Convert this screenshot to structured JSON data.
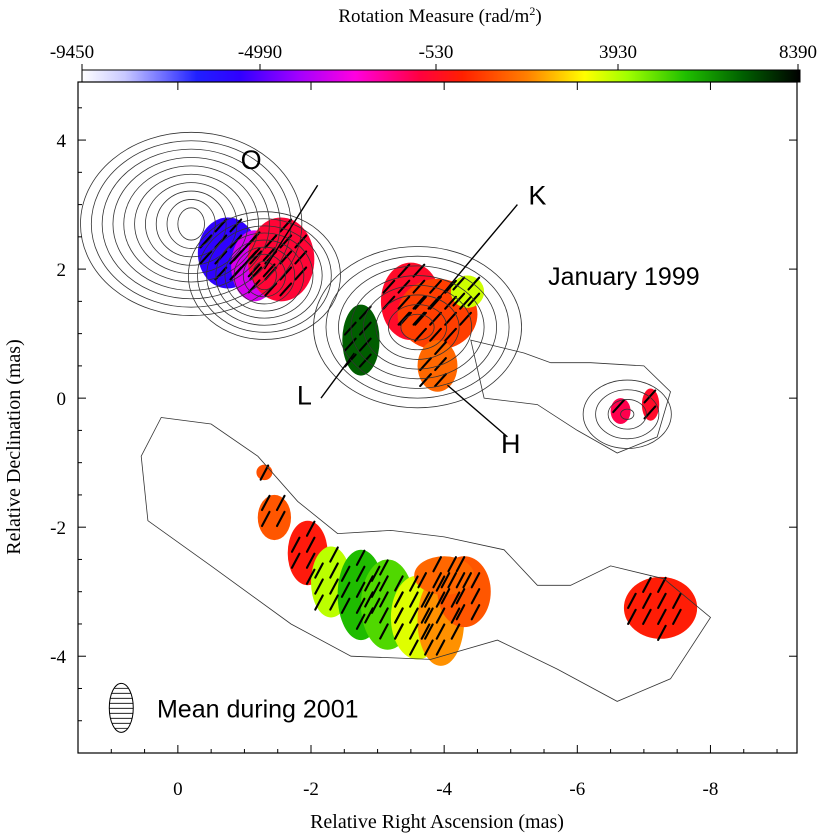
{
  "chart_data": {
    "type": "heatmap",
    "colorbar": {
      "title": "Rotation Measure (rad/m",
      "title_sup": "2",
      "title_close": ")",
      "ticks": [
        "-9450",
        "-4990",
        "-530",
        "3930",
        "8390"
      ],
      "range": [
        -9450,
        8390
      ]
    },
    "xlabel": "Relative Right Ascension (mas)",
    "ylabel": "Relative Declination (mas)",
    "xlim": [
      1.5,
      -9.3
    ],
    "ylim": [
      -5.5,
      4.9
    ],
    "x_ticks": [
      0,
      -2,
      -4,
      -6,
      -8
    ],
    "x_tick_labels": [
      "0",
      "-2",
      "-4",
      "-6",
      "-8"
    ],
    "y_ticks": [
      4,
      2,
      0,
      -2,
      -4
    ],
    "y_tick_labels": [
      "4",
      "2",
      "0",
      "-2",
      "-4"
    ],
    "annotations": [
      {
        "id": "O",
        "text": "O",
        "x": -1.1,
        "y": 3.55,
        "line": [
          [
            -2.1,
            3.3
          ],
          [
            -1.3,
            2.0
          ]
        ]
      },
      {
        "id": "K",
        "text": "K",
        "x": -5.4,
        "y": 3.0,
        "line": [
          [
            -5.1,
            3.0
          ],
          [
            -3.8,
            1.4
          ]
        ]
      },
      {
        "id": "L",
        "text": "L",
        "x": -1.9,
        "y": -0.1,
        "line": [
          [
            -2.15,
            0.0
          ],
          [
            -2.65,
            0.7
          ]
        ]
      },
      {
        "id": "H",
        "text": "H",
        "x": -5.0,
        "y": -0.85,
        "line": [
          [
            -4.95,
            -0.6
          ],
          [
            -4.05,
            0.2
          ]
        ]
      }
    ],
    "panel_labels": [
      {
        "text": "January 1999",
        "x": -6.7,
        "y": 1.75
      },
      {
        "text": "Mean during 2001",
        "x": -1.2,
        "y": -4.95
      }
    ],
    "rm_regions": [
      {
        "name": "component-O-blue",
        "x": -0.75,
        "y": 2.25,
        "rx": 0.45,
        "ry": 0.55,
        "rm": -5600
      },
      {
        "name": "component-O-magenta",
        "x": -1.15,
        "y": 2.05,
        "rx": 0.35,
        "ry": 0.55,
        "rm": -3300
      },
      {
        "name": "component-O-red",
        "x": -1.55,
        "y": 2.15,
        "rx": 0.5,
        "ry": 0.65,
        "rm": -900
      },
      {
        "name": "component-L",
        "x": -2.75,
        "y": 0.9,
        "rx": 0.28,
        "ry": 0.55,
        "rm": 7000
      },
      {
        "name": "component-K-red",
        "x": -3.5,
        "y": 1.5,
        "rx": 0.45,
        "ry": 0.6,
        "rm": -700
      },
      {
        "name": "component-K-orange",
        "x": -3.9,
        "y": 1.3,
        "rx": 0.6,
        "ry": 0.55,
        "rm": 500
      },
      {
        "name": "component-K-yellow",
        "x": -4.35,
        "y": 1.65,
        "rx": 0.25,
        "ry": 0.25,
        "rm": 3600
      },
      {
        "name": "component-H",
        "x": -3.9,
        "y": 0.5,
        "rx": 0.3,
        "ry": 0.4,
        "rm": 1200
      },
      {
        "name": "outer-red-1",
        "x": -6.65,
        "y": -0.2,
        "rx": 0.15,
        "ry": 0.2,
        "rm": -1200
      },
      {
        "name": "outer-red-2",
        "x": -7.1,
        "y": -0.1,
        "rx": 0.13,
        "ry": 0.25,
        "rm": -700
      },
      {
        "name": "jet-2001-knot-1",
        "x": -1.3,
        "y": -1.15,
        "rx": 0.12,
        "ry": 0.12,
        "rm": 800
      },
      {
        "name": "jet-2001-knot-2",
        "x": -1.45,
        "y": -1.85,
        "rx": 0.25,
        "ry": 0.35,
        "rm": 900
      },
      {
        "name": "jet-2001-red",
        "x": -1.95,
        "y": -2.4,
        "rx": 0.3,
        "ry": 0.5,
        "rm": -200
      },
      {
        "name": "jet-2001-yellow",
        "x": -2.3,
        "y": -2.85,
        "rx": 0.3,
        "ry": 0.55,
        "rm": 3800
      },
      {
        "name": "jet-2001-green-1",
        "x": -2.75,
        "y": -3.05,
        "rx": 0.35,
        "ry": 0.7,
        "rm": 5600
      },
      {
        "name": "jet-2001-green-2",
        "x": -3.15,
        "y": -3.2,
        "rx": 0.4,
        "ry": 0.7,
        "rm": 5000
      },
      {
        "name": "jet-2001-yellow-2",
        "x": -3.6,
        "y": -3.4,
        "rx": 0.4,
        "ry": 0.65,
        "rm": 3400
      },
      {
        "name": "jet-2001-orange-1",
        "x": -3.95,
        "y": -3.45,
        "rx": 0.35,
        "ry": 0.7,
        "rm": 1800
      },
      {
        "name": "jet-2001-orange-2",
        "x": -4.3,
        "y": -3.0,
        "rx": 0.4,
        "ry": 0.55,
        "rm": 900
      },
      {
        "name": "jet-2001-orange-3",
        "x": -4.0,
        "y": -2.75,
        "rx": 0.45,
        "ry": 0.3,
        "rm": 1200
      },
      {
        "name": "jet-2001-outer",
        "x": -7.25,
        "y": -3.25,
        "rx": 0.55,
        "ry": 0.48,
        "rm": -100
      }
    ],
    "contours_1999": [
      {
        "name": "core-contours",
        "x": -0.2,
        "y": 2.7,
        "rx": 0.2,
        "ry": 0.25,
        "levels": 10,
        "step": 0.13
      },
      {
        "name": "o-contours",
        "x": -1.3,
        "y": 1.9,
        "rx": 0.18,
        "ry": 0.22,
        "levels": 8,
        "step": 0.11
      },
      {
        "name": "k-contours",
        "x": -3.6,
        "y": 1.1,
        "rx": 0.25,
        "ry": 0.2,
        "levels": 8,
        "step": 0.15
      },
      {
        "name": "outer-contours",
        "x": -6.75,
        "y": -0.25,
        "rx": 0.1,
        "ry": 0.08,
        "levels": 4,
        "step": 0.15
      }
    ],
    "contour_2001_outline": [
      [
        0.25,
        -0.3
      ],
      [
        -0.5,
        -0.4
      ],
      [
        -1.2,
        -0.9
      ],
      [
        -1.8,
        -1.6
      ],
      [
        -2.4,
        -2.1
      ],
      [
        -3.2,
        -2.05
      ],
      [
        -4.0,
        -2.15
      ],
      [
        -4.9,
        -2.35
      ],
      [
        -5.4,
        -2.9
      ],
      [
        -5.9,
        -2.9
      ],
      [
        -6.5,
        -2.6
      ],
      [
        -7.3,
        -2.8
      ],
      [
        -8.0,
        -3.4
      ],
      [
        -7.4,
        -4.35
      ],
      [
        -6.6,
        -4.7
      ],
      [
        -5.7,
        -4.2
      ],
      [
        -4.8,
        -3.75
      ],
      [
        -3.8,
        -4.05
      ],
      [
        -2.6,
        -4.0
      ],
      [
        -1.7,
        -3.5
      ],
      [
        -0.5,
        -2.6
      ],
      [
        0.45,
        -1.9
      ],
      [
        0.55,
        -0.9
      ]
    ],
    "beam": {
      "x": 0.85,
      "y": -4.8,
      "rx": 0.18,
      "ry": 0.38
    }
  }
}
